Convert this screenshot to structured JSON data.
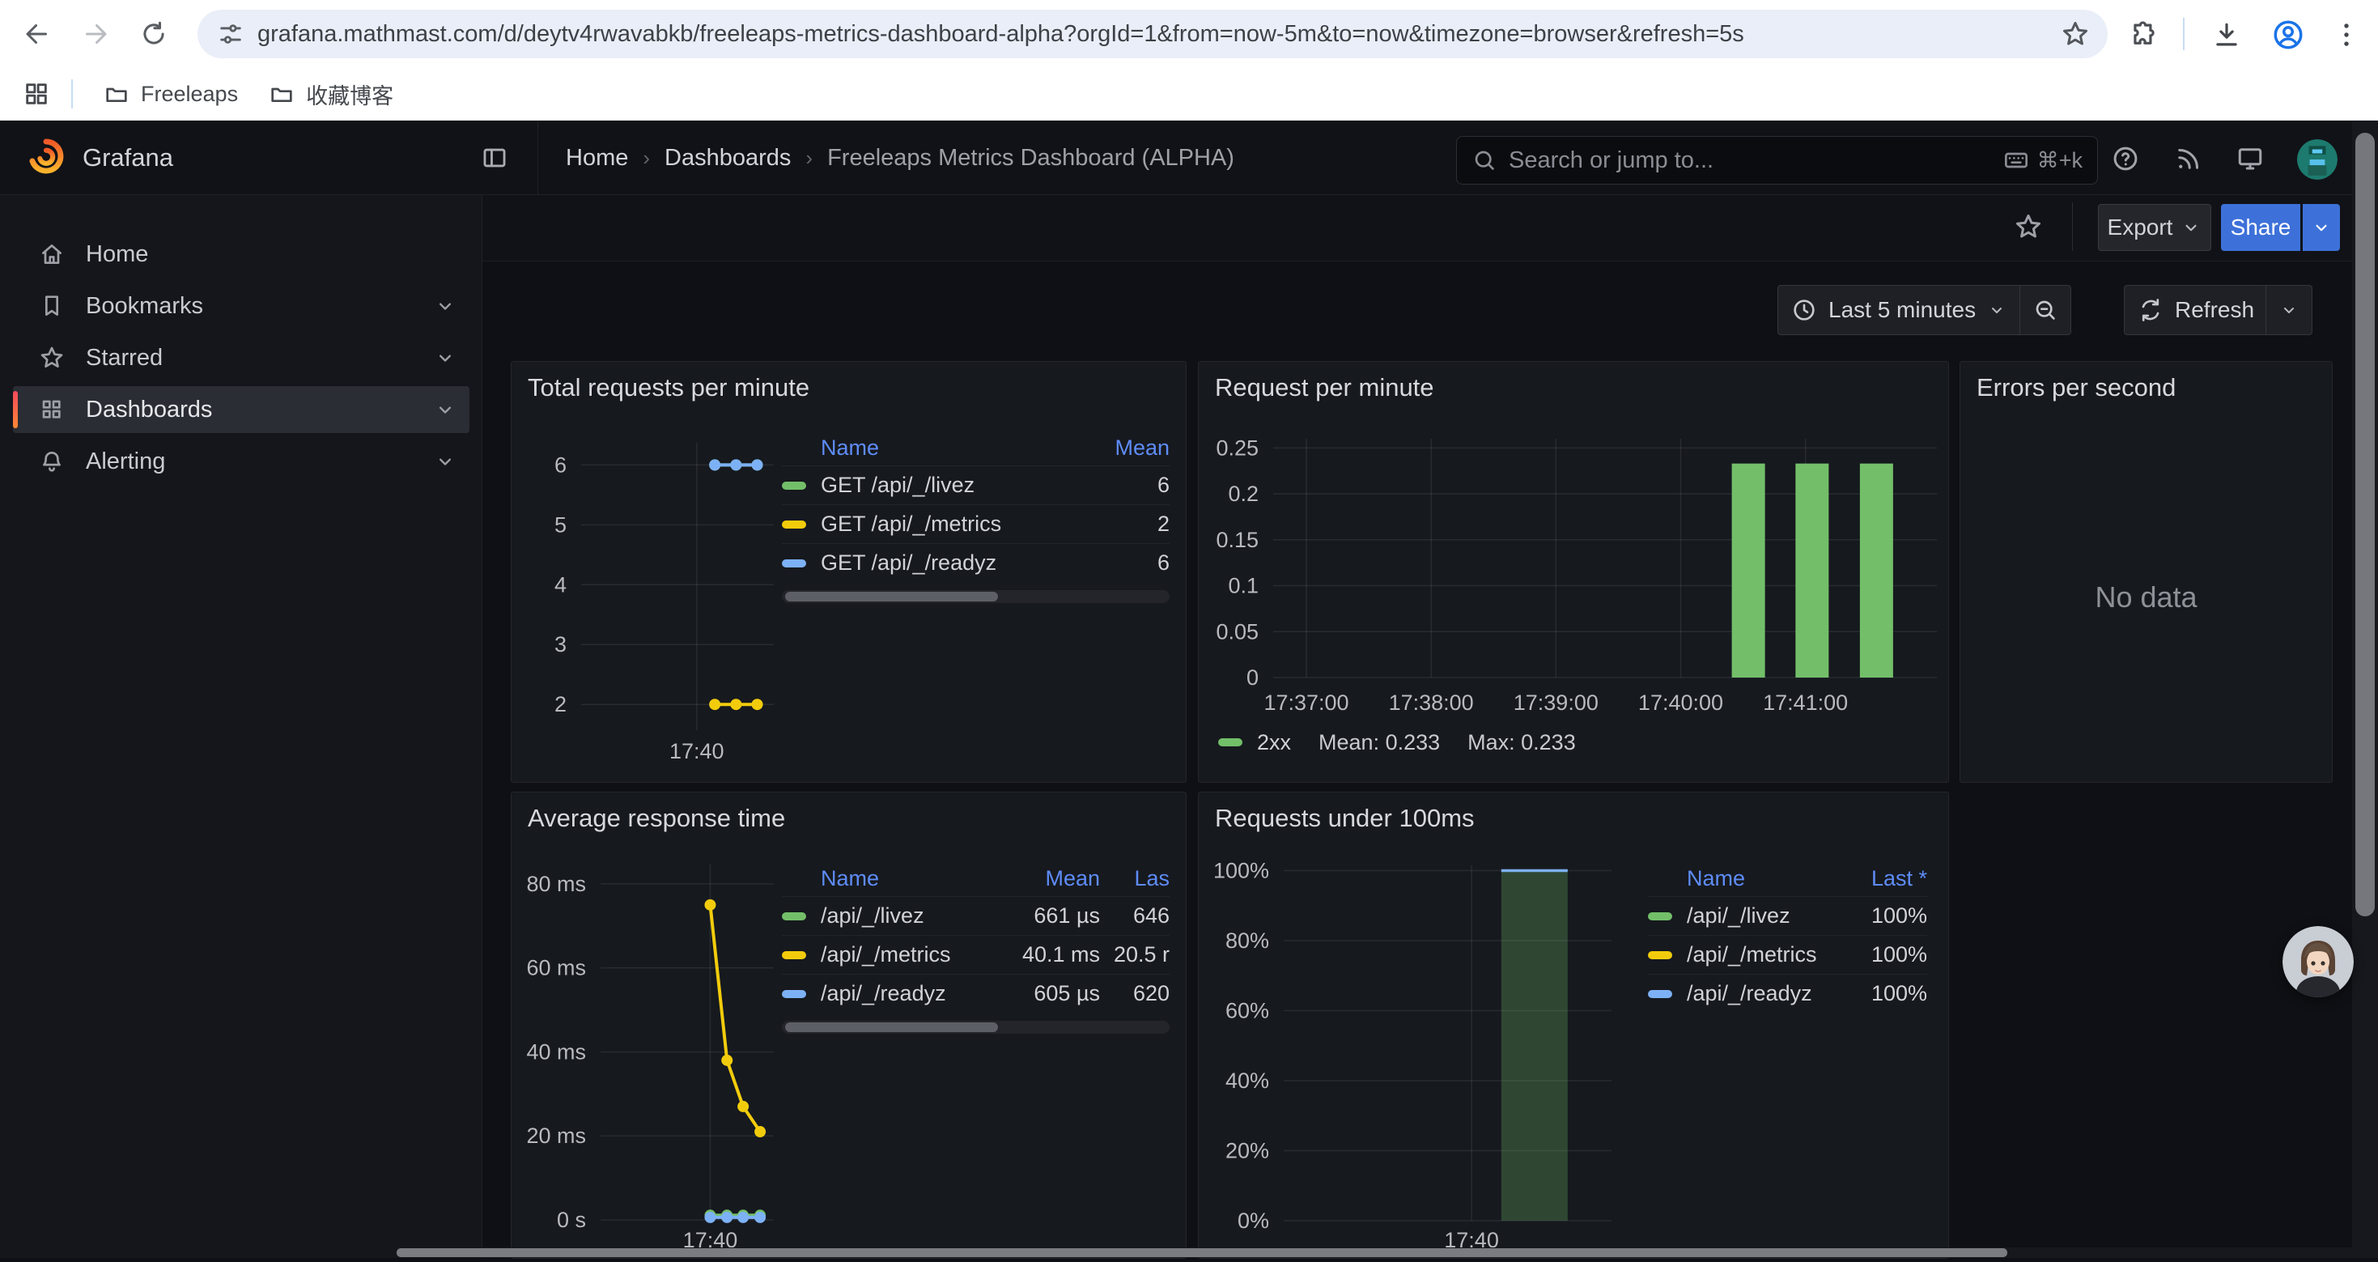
{
  "browser": {
    "url": "grafana.mathmast.com/d/deytv4rwavabkb/freeleaps-metrics-dashboard-alpha?orgId=1&from=now-5m&to=now&timezone=browser&refresh=5s",
    "bookmarks": [
      "Freeleaps",
      "收藏博客"
    ]
  },
  "grafana": {
    "brand": "Grafana",
    "breadcrumbs": [
      "Home",
      "Dashboards",
      "Freeleaps Metrics Dashboard (ALPHA)"
    ],
    "search_placeholder": "Search or jump to...",
    "search_shortcut": "⌘+k",
    "sidebar": [
      {
        "label": "Home"
      },
      {
        "label": "Bookmarks"
      },
      {
        "label": "Starred"
      },
      {
        "label": "Dashboards"
      },
      {
        "label": "Alerting"
      }
    ],
    "toolbar": {
      "export": "Export",
      "share": "Share"
    },
    "timebar": {
      "range": "Last 5 minutes",
      "refresh": "Refresh"
    }
  },
  "colors": {
    "green": "#73bf69",
    "yellow": "#f2cc0c",
    "blue": "#7db1f5",
    "accent": "#5e8cf7",
    "share_blue": "#3d71d9",
    "bar_fill_olive": "rgba(115,191,105,0.28)"
  },
  "panels": {
    "total_requests": {
      "title": "Total requests per minute",
      "legend": {
        "columns": [
          "Name",
          "Mean"
        ],
        "rows": [
          {
            "color": "#73bf69",
            "name": "GET /api/_/livez",
            "values": [
              "6"
            ]
          },
          {
            "color": "#f2cc0c",
            "name": "GET /api/_/metrics",
            "values": [
              "2"
            ]
          },
          {
            "color": "#7db1f5",
            "name": "GET /api/_/readyz",
            "values": [
              "6"
            ]
          }
        ]
      },
      "chart_data": {
        "type": "line",
        "ylim": [
          1.57,
          6.37
        ],
        "yticks": [
          {
            "v": 6,
            "label": "6"
          },
          {
            "v": 5,
            "label": "5"
          },
          {
            "v": 4,
            "label": "4"
          },
          {
            "v": 3,
            "label": "3"
          },
          {
            "v": 2,
            "label": "2"
          }
        ],
        "xticks": [
          {
            "f": 0.6,
            "label": "17:40"
          }
        ],
        "series": [
          {
            "name": "GET /api/_/livez",
            "color": "#73bf69",
            "mean": 6,
            "points": [
              [
                0.694,
                6
              ],
              [
                0.804,
                6
              ],
              [
                0.914,
                6
              ]
            ]
          },
          {
            "name": "GET /api/_/readyz",
            "color": "#7db1f5",
            "mean": 6,
            "points": [
              [
                0.694,
                6
              ],
              [
                0.804,
                6
              ],
              [
                0.914,
                6
              ]
            ]
          },
          {
            "name": "GET /api/_/metrics",
            "color": "#f2cc0c",
            "mean": 2,
            "points": [
              [
                0.694,
                2
              ],
              [
                0.804,
                2
              ],
              [
                0.914,
                2
              ]
            ]
          }
        ]
      }
    },
    "request_per_minute": {
      "title": "Request per minute",
      "legend_name": "2xx",
      "legend_mean": "Mean: 0.233",
      "legend_max": "Max: 0.233",
      "chart_data": {
        "type": "bar",
        "series_name": "2xx",
        "mean": 0.233,
        "max": 0.233,
        "ylim": [
          0,
          0.26
        ],
        "yticks": [
          {
            "v": 0.25,
            "label": "0.25"
          },
          {
            "v": 0.2,
            "label": "0.2"
          },
          {
            "v": 0.15,
            "label": "0.15"
          },
          {
            "v": 0.1,
            "label": "0.1"
          },
          {
            "v": 0.05,
            "label": "0.05"
          },
          {
            "v": 0,
            "label": "0"
          }
        ],
        "xticks": [
          {
            "f": 0.05,
            "label": "17:37:00"
          },
          {
            "f": 0.238,
            "label": "17:38:00"
          },
          {
            "f": 0.426,
            "label": "17:39:00"
          },
          {
            "f": 0.614,
            "label": "17:40:00"
          },
          {
            "f": 0.802,
            "label": "17:41:00"
          }
        ],
        "bars": [
          {
            "f": 0.716,
            "v": 0.233
          },
          {
            "f": 0.812,
            "v": 0.233
          },
          {
            "f": 0.909,
            "v": 0.233
          }
        ],
        "bar_color": "#73bf69"
      }
    },
    "errors": {
      "title": "Errors per second",
      "no_data": "No data"
    },
    "avg_response": {
      "title": "Average response time",
      "legend": {
        "columns": [
          "Name",
          "Mean",
          "Las"
        ],
        "rows": [
          {
            "color": "#73bf69",
            "name": "/api/_/livez",
            "values": [
              "661 µs",
              "646"
            ]
          },
          {
            "color": "#f2cc0c",
            "name": "/api/_/metrics",
            "values": [
              "40.1 ms",
              "20.5 r"
            ]
          },
          {
            "color": "#7db1f5",
            "name": "/api/_/readyz",
            "values": [
              "605 µs",
              "620"
            ]
          }
        ]
      },
      "chart_data": {
        "type": "line",
        "ylim": [
          0,
          84.8
        ],
        "yticks": [
          {
            "v": 80,
            "label": "80 ms"
          },
          {
            "v": 60,
            "label": "60 ms"
          },
          {
            "v": 40,
            "label": "40 ms"
          },
          {
            "v": 20,
            "label": "20 ms"
          },
          {
            "v": 0,
            "label": "0 s"
          }
        ],
        "xticks": [
          {
            "f": 0.633,
            "label": "17:40"
          }
        ],
        "series": [
          {
            "name": "/api/_/metrics",
            "color": "#f2cc0c",
            "mean_label": "40.1 ms",
            "points": [
              [
                0.633,
                75
              ],
              [
                0.73,
                38
              ],
              [
                0.823,
                27
              ],
              [
                0.921,
                21
              ]
            ]
          },
          {
            "name": "/api/_/livez",
            "color": "#73bf69",
            "mean_label": "661 µs",
            "points": [
              [
                0.633,
                1.1
              ],
              [
                0.73,
                1.1
              ],
              [
                0.823,
                1.1
              ],
              [
                0.921,
                1.1
              ]
            ]
          },
          {
            "name": "/api/_/readyz",
            "color": "#7db1f5",
            "mean_label": "605 µs",
            "points": [
              [
                0.633,
                0.6
              ],
              [
                0.73,
                0.6
              ],
              [
                0.823,
                0.6
              ],
              [
                0.921,
                0.6
              ]
            ]
          }
        ]
      }
    },
    "under_100ms": {
      "title": "Requests under 100ms",
      "legend": {
        "columns": [
          "Name",
          "Last *"
        ],
        "rows": [
          {
            "color": "#73bf69",
            "name": "/api/_/livez",
            "values": [
              "100%"
            ]
          },
          {
            "color": "#f2cc0c",
            "name": "/api/_/metrics",
            "values": [
              "100%"
            ]
          },
          {
            "color": "#7db1f5",
            "name": "/api/_/readyz",
            "values": [
              "100%"
            ]
          }
        ]
      },
      "chart_data": {
        "type": "bar",
        "ylim": [
          0,
          101.5
        ],
        "yticks": [
          {
            "v": 100,
            "label": "100%"
          },
          {
            "v": 80,
            "label": "80%"
          },
          {
            "v": 60,
            "label": "60%"
          },
          {
            "v": 40,
            "label": "40%"
          },
          {
            "v": 20,
            "label": "20%"
          },
          {
            "v": 0,
            "label": "0%"
          }
        ],
        "xticks": [
          {
            "f": 0.573,
            "label": "17:40"
          }
        ],
        "bars": [
          {
            "f": 0.765,
            "v": 100
          }
        ],
        "bar_color": "rgba(115,191,105,0.28)",
        "bar_top_stroke": "#7db1f5"
      }
    }
  }
}
